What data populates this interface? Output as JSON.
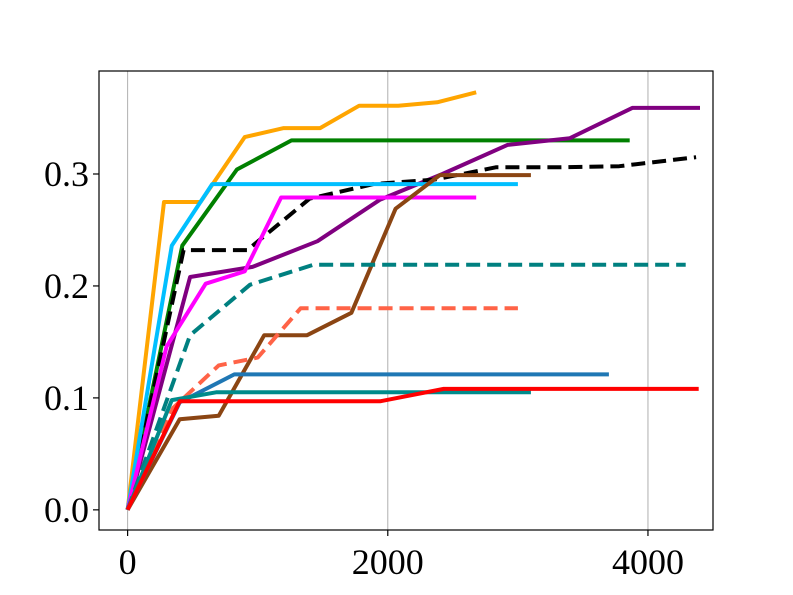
{
  "chart_data": {
    "type": "line",
    "title": "",
    "xlabel": "",
    "ylabel": "",
    "xlim": [
      -220,
      4500
    ],
    "ylim": [
      -0.018,
      0.392
    ],
    "xticks": [
      0,
      2000,
      4000
    ],
    "xtick_labels": [
      "0",
      "2000",
      "4000"
    ],
    "yticks": [
      0.0,
      0.1,
      0.2,
      0.3
    ],
    "ytick_labels": [
      "0.0",
      "0.1",
      "0.2",
      "0.3"
    ],
    "grid": "vertical",
    "legend": "none",
    "series": [
      {
        "color": "#ffa500",
        "dash": "solid",
        "x": [
          0,
          280,
          560,
          900,
          1200,
          1480,
          1780,
          2080,
          2380,
          2680
        ],
        "y": [
          0,
          0.275,
          0.275,
          0.333,
          0.341,
          0.341,
          0.361,
          0.361,
          0.364,
          0.373
        ]
      },
      {
        "color": "#008000",
        "dash": "solid",
        "x": [
          0,
          420,
          840,
          1260,
          1680,
          2100,
          2520,
          2940,
          3360,
          3860
        ],
        "y": [
          0,
          0.236,
          0.304,
          0.33,
          0.33,
          0.33,
          0.33,
          0.33,
          0.33,
          0.33
        ]
      },
      {
        "color": "#800080",
        "dash": "solid",
        "x": [
          0,
          480,
          960,
          1460,
          1940,
          2420,
          2920,
          3400,
          3880,
          3990,
          4400
        ],
        "y": [
          0,
          0.208,
          0.217,
          0.24,
          0.277,
          0.3,
          0.326,
          0.332,
          0.359,
          0.359,
          0.359
        ]
      },
      {
        "color": "#000000",
        "dash": "dashed",
        "x": [
          0,
          430,
          920,
          1400,
          1890,
          2360,
          2830,
          3300,
          3780,
          4370
        ],
        "y": [
          0,
          0.232,
          0.232,
          0.278,
          0.291,
          0.295,
          0.306,
          0.306,
          0.307,
          0.315
        ]
      },
      {
        "color": "#00bfff",
        "dash": "solid",
        "x": [
          0,
          340,
          650,
          1000,
          1300,
          1650,
          2000,
          2300,
          2650,
          3000
        ],
        "y": [
          0,
          0.236,
          0.291,
          0.291,
          0.291,
          0.291,
          0.291,
          0.291,
          0.291,
          0.291
        ]
      },
      {
        "color": "#ff00ff",
        "dash": "solid",
        "x": [
          0,
          300,
          600,
          900,
          1180,
          1480,
          1780,
          2080,
          2380,
          2680
        ],
        "y": [
          0,
          0.146,
          0.202,
          0.213,
          0.279,
          0.279,
          0.279,
          0.279,
          0.279,
          0.279
        ]
      },
      {
        "color": "#8b4513",
        "dash": "solid",
        "x": [
          0,
          400,
          700,
          1050,
          1380,
          1720,
          2060,
          2400,
          2750,
          3100
        ],
        "y": [
          0,
          0.081,
          0.084,
          0.156,
          0.156,
          0.176,
          0.269,
          0.299,
          0.299,
          0.299
        ]
      },
      {
        "color": "#008080",
        "dash": "dashed",
        "x": [
          0,
          480,
          940,
          1430,
          1910,
          2380,
          2860,
          3330,
          3810,
          4290
        ],
        "y": [
          0,
          0.156,
          0.201,
          0.219,
          0.219,
          0.219,
          0.219,
          0.219,
          0.219,
          0.219
        ]
      },
      {
        "color": "#ff6347",
        "dash": "dashed",
        "x": [
          0,
          350,
          700,
          1000,
          1330,
          1670,
          2000,
          2330,
          2670,
          3000
        ],
        "y": [
          0,
          0.091,
          0.129,
          0.136,
          0.18,
          0.18,
          0.18,
          0.18,
          0.18,
          0.18
        ]
      },
      {
        "color": "#1f77b4",
        "dash": "solid",
        "x": [
          0,
          400,
          820,
          1230,
          1640,
          2050,
          2460,
          2870,
          3280,
          3700
        ],
        "y": [
          0,
          0.096,
          0.121,
          0.121,
          0.121,
          0.121,
          0.121,
          0.121,
          0.121,
          0.121
        ]
      },
      {
        "color": "#008b8b",
        "dash": "solid",
        "x": [
          0,
          340,
          680,
          1030,
          1370,
          1720,
          2060,
          2400,
          2750,
          3100
        ],
        "y": [
          0,
          0.098,
          0.105,
          0.105,
          0.105,
          0.105,
          0.105,
          0.105,
          0.105,
          0.105
        ]
      },
      {
        "color": "#ff0000",
        "dash": "solid",
        "x": [
          0,
          400,
          960,
          1450,
          1940,
          2430,
          2920,
          3410,
          3900,
          4390
        ],
        "y": [
          0,
          0.097,
          0.097,
          0.097,
          0.097,
          0.108,
          0.108,
          0.108,
          0.108,
          0.108
        ]
      }
    ]
  }
}
